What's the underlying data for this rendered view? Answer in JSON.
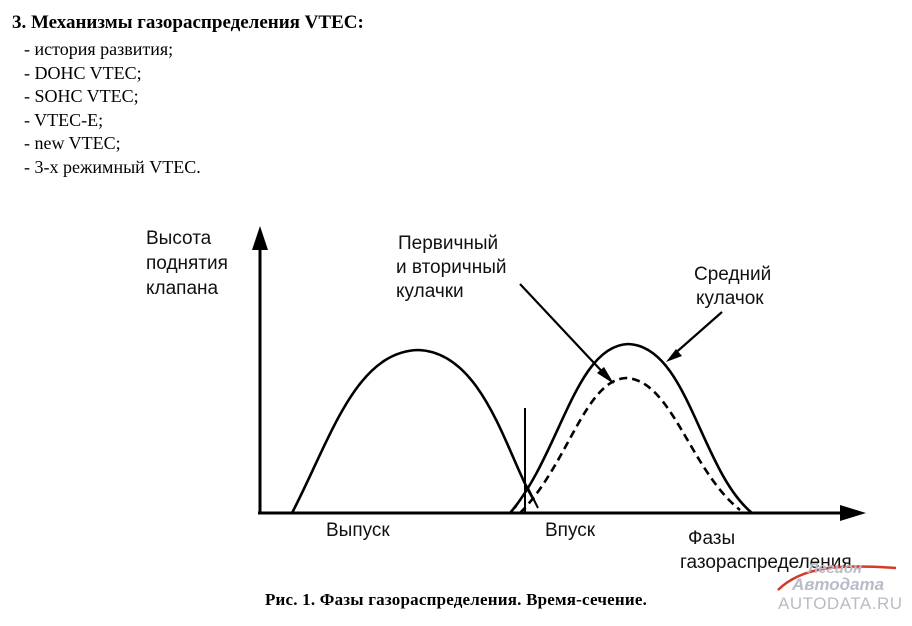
{
  "heading": "3. Механизмы газораспределения VTEC:",
  "toc_items": [
    "- история развития;",
    "- DOHC VTEC;",
    "- SOHC VTEC;",
    "- VTEC-E;",
    "- new VTEC;",
    "- 3-х режимный VTEC."
  ],
  "figure": {
    "y_label_lines": [
      "Высота",
      "поднятия",
      "клапана"
    ],
    "x_label_lines": [
      "Фазы",
      "газораспределения"
    ],
    "exhaust_label": "Выпуск",
    "intake_label": "Впуск",
    "primary_secondary_lines": [
      "Первичный",
      "и вторичный",
      "кулачки"
    ],
    "middle_cam_lines": [
      "Средний",
      "кулачок"
    ]
  },
  "caption": "Рис. 1. Фазы газораспределения. Время-сечение.",
  "watermark": {
    "brand_lines": [
      "Легион",
      "Автодата"
    ],
    "site": "AUTODATA.RU",
    "colors": {
      "text": "#b8bcc6",
      "accent": "#d23a2a"
    }
  }
}
